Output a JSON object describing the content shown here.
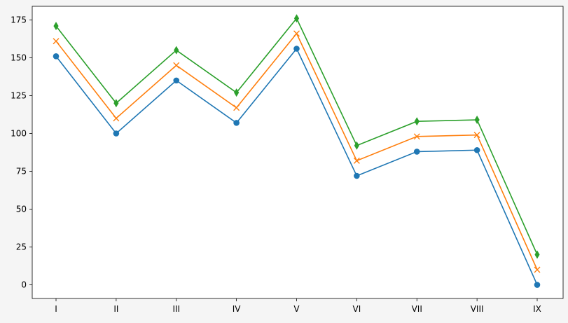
{
  "chart_data": {
    "type": "line",
    "title": "",
    "xlabel": "",
    "ylabel": "",
    "categories": [
      "I",
      "II",
      "III",
      "IV",
      "V",
      "VI",
      "VII",
      "VIII",
      "IX"
    ],
    "ylim": [
      -9,
      184
    ],
    "yticks": [
      0,
      25,
      50,
      75,
      100,
      125,
      150,
      175
    ],
    "grid": false,
    "legend": "none",
    "series": [
      {
        "color": "#1f77b4",
        "marker": "circle",
        "values": [
          151,
          100,
          135,
          107,
          156,
          72,
          88,
          89,
          0
        ]
      },
      {
        "color": "#ff7f0e",
        "marker": "x",
        "values": [
          161,
          110,
          145,
          117,
          166,
          82,
          98,
          99,
          10
        ]
      },
      {
        "color": "#2ca02c",
        "marker": "diamond",
        "values": [
          171,
          120,
          155,
          127,
          176,
          92,
          108,
          109,
          20
        ]
      }
    ]
  }
}
